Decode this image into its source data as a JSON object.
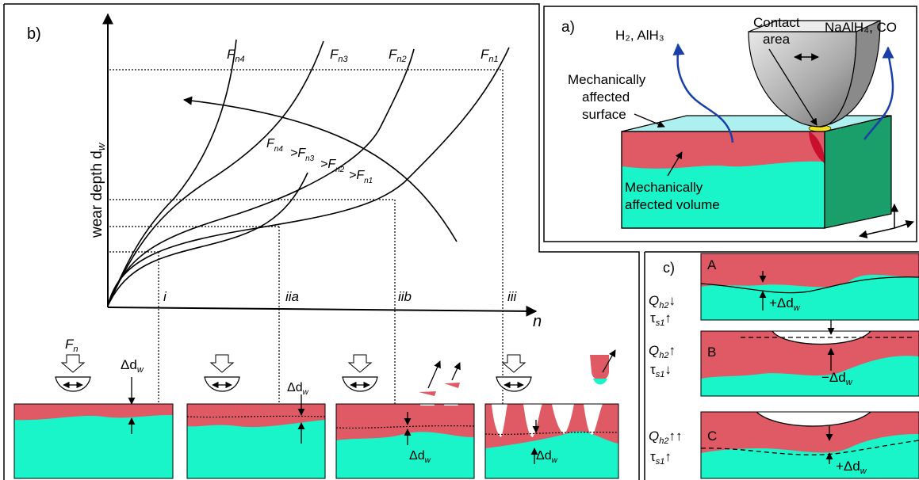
{
  "panel_b": {
    "label": "b)",
    "y_axis": "wear depth d",
    "y_axis_sub": "w",
    "x_axis": "n",
    "curves": [
      {
        "name": "F",
        "sub": "n4"
      },
      {
        "name": "F",
        "sub": "n3"
      },
      {
        "name": "F",
        "sub": "n2"
      },
      {
        "name": "F",
        "sub": "n1"
      }
    ],
    "inequality": [
      {
        "t": "F",
        "s": "n4"
      },
      {
        "t": ">F",
        "s": "n3"
      },
      {
        "t": ">F",
        "s": "n2"
      },
      {
        "t": ">F",
        "s": "n1"
      }
    ],
    "regimes": [
      "i",
      "iia",
      "iib",
      "iii"
    ],
    "fn_label": "F",
    "fn_sub": "n",
    "delta": "Δd",
    "delta_sub": "w"
  },
  "panel_a": {
    "label": "a)",
    "gas_left": "H₂, AlH₃",
    "contact": [
      "Contact",
      "area"
    ],
    "gas_right": "NaAlH₄, CO",
    "surface": [
      "Mechanically",
      "affected",
      "surface"
    ],
    "volume": [
      "Mechanically",
      "affected volume"
    ]
  },
  "panel_c": {
    "label": "c)",
    "rows": [
      {
        "id": "A",
        "q": "Q",
        "q_sub": "h2",
        "q_arrow": "↓",
        "tau": "τ",
        "tau_sub": "s1",
        "tau_arrow": "↑",
        "delta": "+Δd",
        "delta_sub": "w"
      },
      {
        "id": "B",
        "q": "Q",
        "q_sub": "h2",
        "q_arrow": "↑",
        "tau": "τ",
        "tau_sub": "s1",
        "tau_arrow": "↓",
        "delta": "−Δd",
        "delta_sub": "w"
      },
      {
        "id": "C",
        "q": "Q",
        "q_sub": "h2",
        "q_arrow": "↑↑",
        "tau": "τ",
        "tau_sub": "s1",
        "tau_arrow": "↑",
        "delta": "+Δd",
        "delta_sub": "w"
      }
    ]
  },
  "colors": {
    "red": "#e05a66",
    "cyan": "#19f5c8",
    "green": "#1a9e6a",
    "blue": "#1a3fa8"
  }
}
